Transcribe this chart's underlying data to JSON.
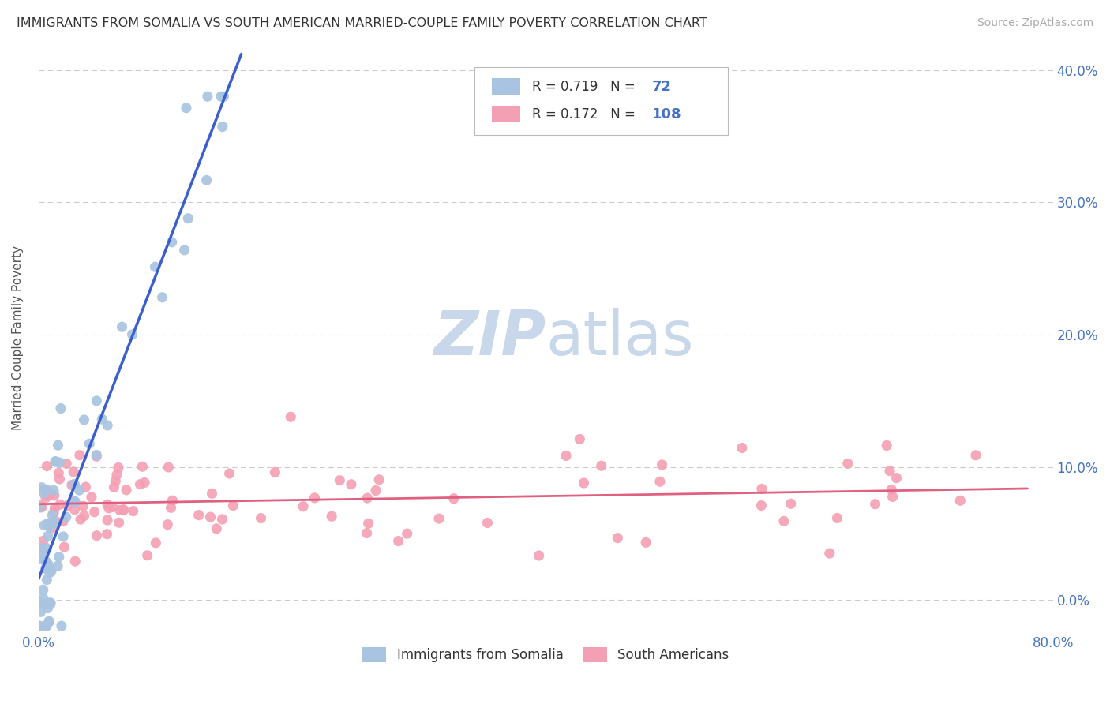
{
  "title": "IMMIGRANTS FROM SOMALIA VS SOUTH AMERICAN MARRIED-COUPLE FAMILY POVERTY CORRELATION CHART",
  "source": "Source: ZipAtlas.com",
  "ylabel": "Married-Couple Family Poverty",
  "legend_somalia": "Immigrants from Somalia",
  "legend_south": "South Americans",
  "somalia_R": 0.719,
  "somalia_N": 72,
  "south_R": 0.172,
  "south_N": 108,
  "somalia_color": "#a8c4e0",
  "south_color": "#f4a0b4",
  "trendline_somalia_color": "#3a5fcd",
  "trendline_south_color": "#e06080",
  "legend_r_color": "#4472c4",
  "background_color": "#ffffff",
  "grid_color": "#cccccc",
  "xlim": [
    0.0,
    0.8
  ],
  "ylim": [
    -0.025,
    0.42
  ],
  "watermark_zip": "ZIP",
  "watermark_atlas": "atlas",
  "watermark_color": "#c8d8ea"
}
